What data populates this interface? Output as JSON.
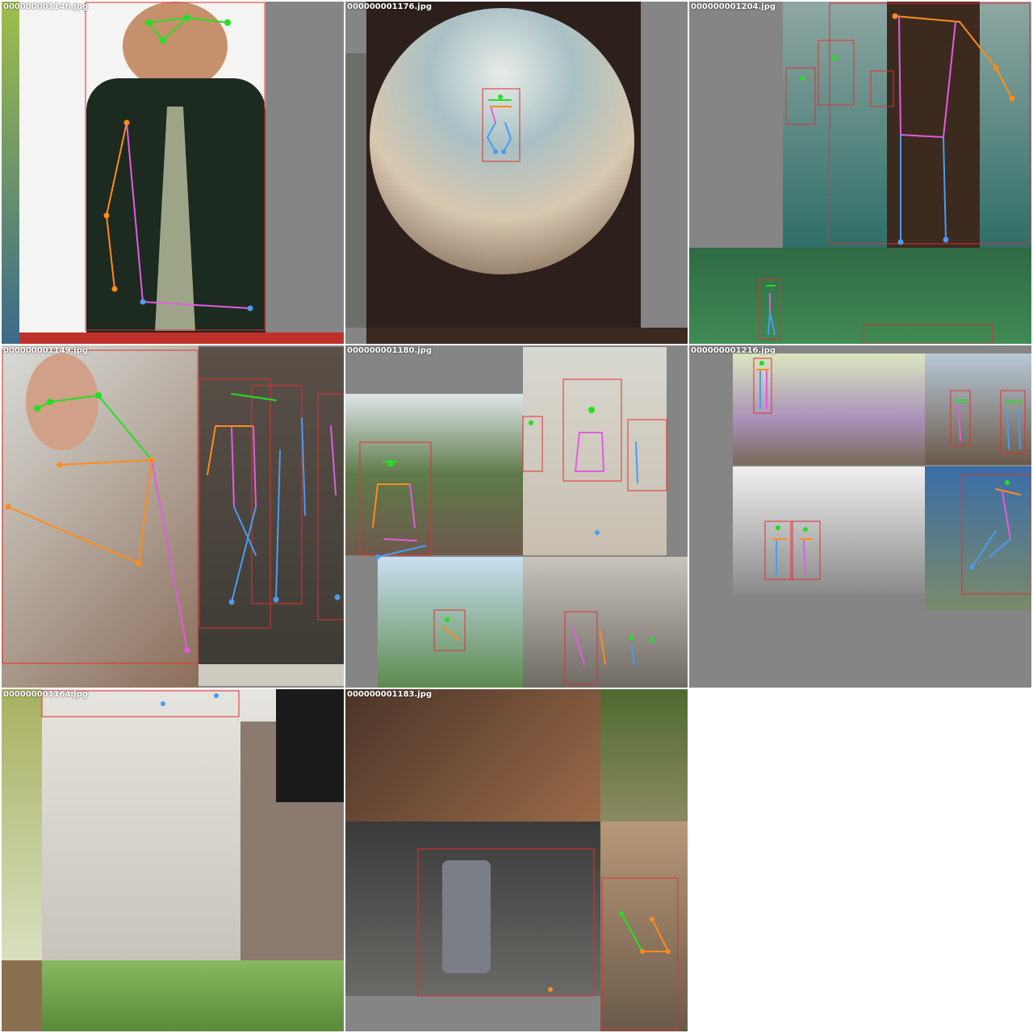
{
  "colors": {
    "box": "#e03030",
    "face": "#22e022",
    "arm": "#ff8c1a",
    "torso": "#e05ce0",
    "leg": "#4a9cf0",
    "pad": "#858585"
  },
  "tiles": [
    {
      "filename": "000000001146.jpg"
    },
    {
      "filename": "000000001176.jpg"
    },
    {
      "filename": "000000001204.jpg"
    },
    {
      "filename": "000000001149.jpg"
    },
    {
      "filename": "000000001180.jpg"
    },
    {
      "filename": "000000001216.jpg"
    },
    {
      "filename": "000000001164.jpg"
    },
    {
      "filename": "000000001183.jpg"
    }
  ]
}
